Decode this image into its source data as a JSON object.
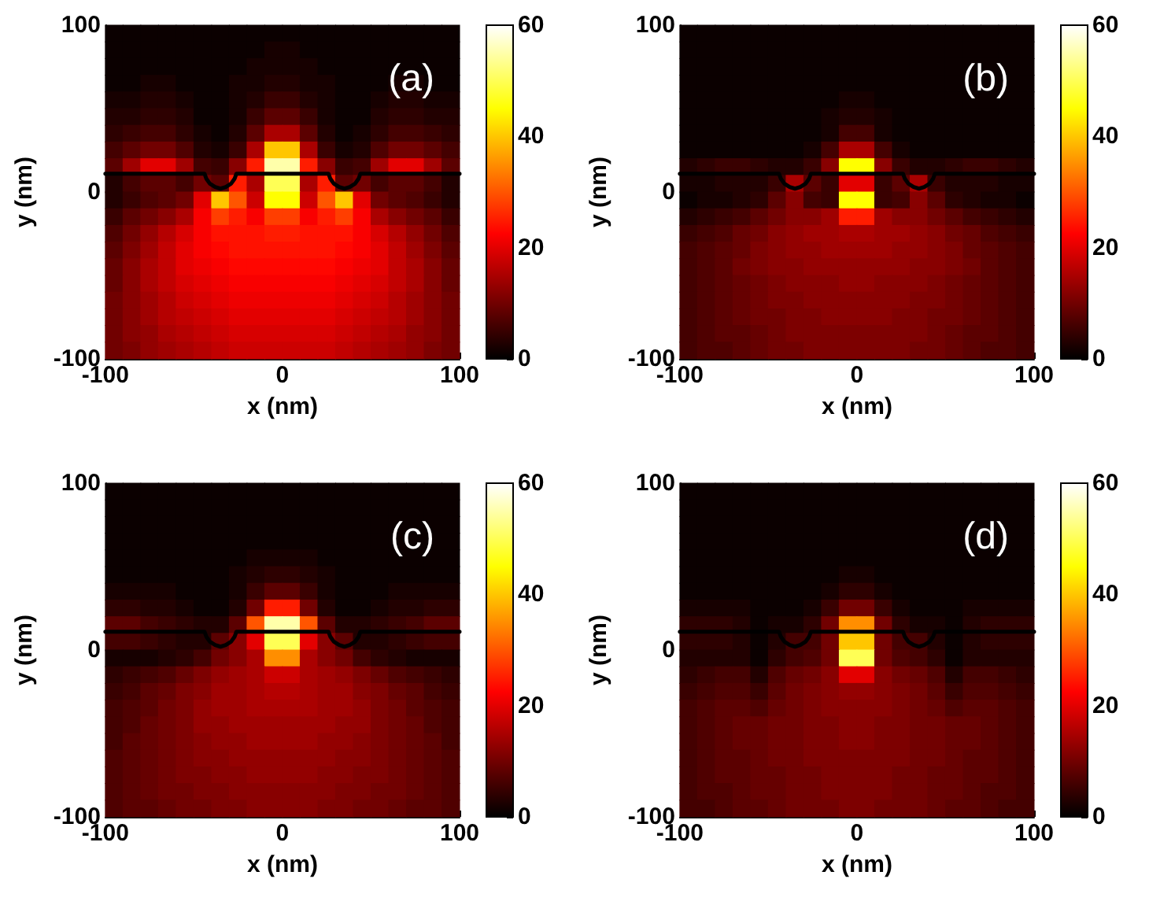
{
  "chart_data": [
    {
      "type": "heatmap",
      "xlabel": "x (nm)",
      "ylabel": "y (nm)",
      "annotations": [
        "(a)"
      ],
      "xlim": [
        -100,
        100
      ],
      "xticks": [
        -100,
        0,
        100
      ],
      "ylim": [
        -100,
        100
      ],
      "yticks": [
        -100,
        0,
        100
      ],
      "clim": [
        0,
        60
      ],
      "cticks": [
        0,
        20,
        40,
        60
      ],
      "cells": [
        [
          1,
          1,
          1,
          1,
          1,
          1,
          1,
          1,
          1,
          1,
          1,
          1,
          1,
          1,
          1,
          1,
          1,
          1,
          1,
          1
        ],
        [
          1,
          1,
          1,
          1,
          1,
          1,
          1,
          1,
          1,
          2,
          2,
          1,
          1,
          1,
          1,
          1,
          1,
          1,
          1,
          1
        ],
        [
          1,
          1,
          1,
          1,
          1,
          1,
          1,
          1,
          2,
          2,
          2,
          2,
          1,
          1,
          1,
          1,
          1,
          1,
          1,
          1
        ],
        [
          1,
          1,
          2,
          2,
          1,
          1,
          1,
          2,
          2,
          3,
          3,
          2,
          2,
          1,
          1,
          1,
          2,
          2,
          1,
          1
        ],
        [
          2,
          2,
          3,
          3,
          2,
          1,
          1,
          2,
          3,
          5,
          5,
          3,
          2,
          1,
          1,
          2,
          3,
          3,
          2,
          2
        ],
        [
          3,
          3,
          4,
          4,
          3,
          1,
          1,
          2,
          5,
          8,
          8,
          5,
          2,
          1,
          1,
          3,
          4,
          4,
          3,
          3
        ],
        [
          4,
          5,
          6,
          6,
          4,
          2,
          1,
          3,
          8,
          15,
          15,
          8,
          3,
          1,
          2,
          4,
          6,
          6,
          5,
          4
        ],
        [
          6,
          8,
          10,
          10,
          7,
          3,
          2,
          5,
          15,
          40,
          40,
          15,
          5,
          2,
          3,
          7,
          10,
          10,
          8,
          6
        ],
        [
          8,
          14,
          20,
          20,
          14,
          6,
          5,
          12,
          25,
          55,
          55,
          25,
          12,
          5,
          6,
          14,
          20,
          20,
          14,
          8
        ],
        [
          3,
          6,
          8,
          8,
          6,
          10,
          8,
          25,
          15,
          50,
          50,
          15,
          25,
          8,
          10,
          6,
          8,
          8,
          6,
          3
        ],
        [
          3,
          5,
          7,
          8,
          10,
          20,
          40,
          30,
          18,
          45,
          45,
          18,
          30,
          40,
          20,
          10,
          8,
          7,
          5,
          3
        ],
        [
          5,
          8,
          10,
          12,
          15,
          22,
          28,
          25,
          22,
          28,
          28,
          22,
          25,
          28,
          22,
          15,
          12,
          10,
          8,
          5
        ],
        [
          7,
          10,
          13,
          16,
          19,
          22,
          24,
          24,
          24,
          25,
          25,
          24,
          24,
          24,
          22,
          19,
          16,
          13,
          10,
          7
        ],
        [
          8,
          11,
          14,
          17,
          20,
          22,
          23,
          24,
          24,
          24,
          24,
          24,
          24,
          23,
          22,
          20,
          17,
          14,
          11,
          8
        ],
        [
          9,
          12,
          15,
          17,
          20,
          21,
          22,
          23,
          23,
          23,
          23,
          23,
          23,
          22,
          21,
          20,
          17,
          15,
          12,
          9
        ],
        [
          9,
          12,
          15,
          17,
          19,
          20,
          21,
          22,
          22,
          22,
          22,
          22,
          22,
          21,
          20,
          19,
          17,
          15,
          12,
          9
        ],
        [
          10,
          12,
          14,
          16,
          18,
          19,
          20,
          21,
          21,
          21,
          21,
          21,
          21,
          20,
          19,
          18,
          16,
          14,
          12,
          10
        ],
        [
          10,
          12,
          14,
          16,
          17,
          18,
          19,
          20,
          20,
          20,
          20,
          20,
          20,
          19,
          18,
          17,
          16,
          14,
          12,
          10
        ],
        [
          10,
          12,
          13,
          15,
          16,
          17,
          18,
          19,
          19,
          19,
          19,
          19,
          19,
          18,
          17,
          16,
          15,
          13,
          12,
          10
        ],
        [
          10,
          11,
          13,
          14,
          15,
          16,
          17,
          18,
          18,
          18,
          18,
          18,
          18,
          17,
          16,
          15,
          14,
          13,
          11,
          10
        ]
      ],
      "series": [
        {
          "type": "line",
          "color": "#000000",
          "x": [
            -100,
            -44,
            -43,
            -41,
            -38,
            -35,
            -32,
            -29,
            -27,
            -26,
            26,
            27,
            29,
            32,
            35,
            38,
            41,
            43,
            44,
            100
          ],
          "values": [
            11,
            11,
            8,
            5,
            3,
            2,
            3,
            5,
            8,
            11,
            11,
            8,
            5,
            3,
            2,
            3,
            5,
            8,
            11,
            11
          ]
        }
      ]
    },
    {
      "type": "heatmap",
      "xlabel": "x (nm)",
      "ylabel": "y (nm)",
      "annotations": [
        "(b)"
      ],
      "xlim": [
        -100,
        100
      ],
      "xticks": [
        -100,
        0,
        100
      ],
      "ylim": [
        -100,
        100
      ],
      "yticks": [
        -100,
        0,
        100
      ],
      "clim": [
        0,
        60
      ],
      "cticks": [
        0,
        20,
        40,
        60
      ],
      "cells": [
        [
          1,
          1,
          1,
          1,
          1,
          1,
          1,
          1,
          1,
          1,
          1,
          1,
          1,
          1,
          1,
          1,
          1,
          1,
          1,
          1
        ],
        [
          1,
          1,
          1,
          1,
          1,
          1,
          1,
          1,
          1,
          1,
          1,
          1,
          1,
          1,
          1,
          1,
          1,
          1,
          1,
          1
        ],
        [
          1,
          1,
          1,
          1,
          1,
          1,
          1,
          1,
          1,
          1,
          1,
          1,
          1,
          1,
          1,
          1,
          1,
          1,
          1,
          1
        ],
        [
          1,
          1,
          1,
          1,
          1,
          1,
          1,
          1,
          1,
          1,
          1,
          1,
          1,
          1,
          1,
          1,
          1,
          1,
          1,
          1
        ],
        [
          1,
          1,
          1,
          1,
          1,
          1,
          1,
          1,
          1,
          2,
          2,
          1,
          1,
          1,
          1,
          1,
          1,
          1,
          1,
          1
        ],
        [
          1,
          1,
          1,
          1,
          1,
          1,
          1,
          1,
          2,
          3,
          3,
          2,
          1,
          1,
          1,
          1,
          1,
          1,
          1,
          1
        ],
        [
          1,
          1,
          1,
          1,
          1,
          1,
          1,
          1,
          2,
          6,
          6,
          2,
          1,
          1,
          1,
          1,
          1,
          1,
          1,
          1
        ],
        [
          1,
          1,
          1,
          1,
          1,
          1,
          1,
          2,
          6,
          15,
          15,
          6,
          2,
          1,
          1,
          1,
          1,
          1,
          1,
          1
        ],
        [
          3,
          4,
          5,
          5,
          4,
          3,
          3,
          5,
          12,
          45,
          45,
          12,
          5,
          3,
          3,
          4,
          5,
          5,
          4,
          3
        ],
        [
          2,
          2,
          3,
          3,
          3,
          5,
          15,
          8,
          5,
          20,
          20,
          5,
          8,
          15,
          5,
          3,
          3,
          3,
          2,
          2
        ],
        [
          1,
          2,
          2,
          3,
          4,
          8,
          12,
          6,
          5,
          45,
          45,
          5,
          6,
          12,
          8,
          4,
          3,
          2,
          2,
          1
        ],
        [
          3,
          4,
          5,
          6,
          8,
          10,
          12,
          12,
          14,
          25,
          25,
          14,
          12,
          12,
          10,
          8,
          6,
          5,
          4,
          3
        ],
        [
          5,
          6,
          7,
          9,
          10,
          12,
          13,
          14,
          14,
          15,
          15,
          14,
          14,
          13,
          12,
          10,
          9,
          7,
          6,
          5
        ],
        [
          6,
          7,
          8,
          9,
          11,
          12,
          13,
          13,
          14,
          14,
          14,
          14,
          13,
          13,
          12,
          11,
          9,
          8,
          7,
          6
        ],
        [
          6,
          7,
          8,
          10,
          11,
          12,
          12,
          13,
          13,
          13,
          13,
          13,
          13,
          12,
          12,
          11,
          10,
          8,
          7,
          6
        ],
        [
          6,
          7,
          8,
          9,
          10,
          11,
          12,
          12,
          12,
          13,
          13,
          12,
          12,
          12,
          11,
          10,
          9,
          8,
          7,
          6
        ],
        [
          6,
          7,
          8,
          9,
          10,
          11,
          11,
          12,
          12,
          12,
          12,
          12,
          12,
          11,
          11,
          10,
          9,
          8,
          7,
          6
        ],
        [
          6,
          7,
          8,
          9,
          10,
          10,
          11,
          11,
          12,
          12,
          12,
          12,
          11,
          11,
          10,
          10,
          9,
          8,
          7,
          6
        ],
        [
          6,
          7,
          8,
          8,
          9,
          10,
          11,
          11,
          11,
          11,
          11,
          11,
          11,
          11,
          10,
          9,
          8,
          8,
          7,
          6
        ],
        [
          6,
          7,
          7,
          8,
          9,
          10,
          10,
          11,
          11,
          11,
          11,
          11,
          11,
          10,
          10,
          9,
          8,
          7,
          7,
          6
        ]
      ],
      "series": [
        {
          "type": "line",
          "color": "#000000",
          "x": [
            -100,
            -44,
            -43,
            -41,
            -38,
            -35,
            -32,
            -29,
            -27,
            -26,
            26,
            27,
            29,
            32,
            35,
            38,
            41,
            43,
            44,
            100
          ],
          "values": [
            11,
            11,
            8,
            5,
            3,
            2,
            3,
            5,
            8,
            11,
            11,
            8,
            5,
            3,
            2,
            3,
            5,
            8,
            11,
            11
          ]
        }
      ]
    },
    {
      "type": "heatmap",
      "xlabel": "x (nm)",
      "ylabel": "y (nm)",
      "annotations": [
        "(c)"
      ],
      "xlim": [
        -100,
        100
      ],
      "xticks": [
        -100,
        0,
        100
      ],
      "ylim": [
        -100,
        100
      ],
      "yticks": [
        -100,
        0,
        100
      ],
      "clim": [
        0,
        60
      ],
      "cticks": [
        0,
        20,
        40,
        60
      ],
      "cells": [
        [
          1,
          1,
          1,
          1,
          1,
          1,
          1,
          1,
          1,
          1,
          1,
          1,
          1,
          1,
          1,
          1,
          1,
          1,
          1,
          1
        ],
        [
          1,
          1,
          1,
          1,
          1,
          1,
          1,
          1,
          1,
          1,
          1,
          1,
          1,
          1,
          1,
          1,
          1,
          1,
          1,
          1
        ],
        [
          1,
          1,
          1,
          1,
          1,
          1,
          1,
          1,
          1,
          1,
          1,
          1,
          1,
          1,
          1,
          1,
          1,
          1,
          1,
          1
        ],
        [
          1,
          1,
          1,
          1,
          1,
          1,
          1,
          1,
          1,
          1,
          1,
          1,
          1,
          1,
          1,
          1,
          1,
          1,
          1,
          1
        ],
        [
          1,
          1,
          1,
          1,
          1,
          1,
          1,
          1,
          2,
          2,
          2,
          2,
          1,
          1,
          1,
          1,
          1,
          1,
          1,
          1
        ],
        [
          1,
          1,
          1,
          1,
          1,
          1,
          1,
          2,
          3,
          4,
          4,
          3,
          2,
          1,
          1,
          1,
          1,
          1,
          1,
          1
        ],
        [
          2,
          2,
          2,
          2,
          1,
          1,
          1,
          2,
          5,
          8,
          8,
          5,
          2,
          1,
          1,
          1,
          2,
          2,
          2,
          2
        ],
        [
          4,
          4,
          3,
          3,
          2,
          1,
          1,
          3,
          10,
          25,
          25,
          10,
          3,
          1,
          1,
          2,
          3,
          3,
          4,
          4
        ],
        [
          8,
          8,
          6,
          5,
          4,
          3,
          3,
          8,
          30,
          55,
          55,
          30,
          8,
          3,
          3,
          4,
          5,
          6,
          8,
          8
        ],
        [
          6,
          6,
          5,
          4,
          3,
          3,
          8,
          12,
          20,
          50,
          50,
          20,
          12,
          8,
          3,
          3,
          4,
          5,
          6,
          6
        ],
        [
          2,
          2,
          2,
          3,
          4,
          6,
          10,
          12,
          15,
          35,
          35,
          15,
          12,
          10,
          6,
          4,
          3,
          2,
          2,
          2
        ],
        [
          4,
          5,
          6,
          7,
          9,
          11,
          13,
          14,
          15,
          18,
          18,
          15,
          14,
          13,
          11,
          9,
          7,
          6,
          5,
          4
        ],
        [
          5,
          6,
          8,
          9,
          11,
          12,
          14,
          14,
          15,
          16,
          16,
          15,
          14,
          14,
          12,
          11,
          9,
          8,
          6,
          5
        ],
        [
          6,
          7,
          8,
          10,
          11,
          13,
          14,
          14,
          15,
          15,
          15,
          15,
          14,
          14,
          13,
          11,
          10,
          8,
          7,
          6
        ],
        [
          6,
          7,
          9,
          10,
          11,
          13,
          13,
          14,
          14,
          14,
          14,
          14,
          14,
          13,
          13,
          11,
          10,
          9,
          7,
          6
        ],
        [
          6,
          8,
          9,
          10,
          11,
          12,
          13,
          13,
          14,
          14,
          14,
          14,
          13,
          13,
          12,
          11,
          10,
          9,
          8,
          6
        ],
        [
          7,
          8,
          9,
          10,
          11,
          12,
          12,
          13,
          13,
          13,
          13,
          13,
          13,
          12,
          12,
          11,
          10,
          9,
          8,
          7
        ],
        [
          7,
          8,
          9,
          10,
          11,
          11,
          12,
          12,
          13,
          13,
          13,
          13,
          12,
          12,
          11,
          11,
          10,
          9,
          8,
          7
        ],
        [
          7,
          8,
          9,
          10,
          10,
          11,
          11,
          12,
          12,
          12,
          12,
          12,
          12,
          11,
          11,
          10,
          10,
          9,
          8,
          7
        ],
        [
          7,
          8,
          8,
          9,
          10,
          10,
          11,
          11,
          12,
          12,
          12,
          12,
          11,
          11,
          10,
          10,
          9,
          8,
          8,
          7
        ]
      ],
      "series": [
        {
          "type": "line",
          "color": "#000000",
          "x": [
            -100,
            -44,
            -43,
            -41,
            -38,
            -35,
            -32,
            -29,
            -27,
            -26,
            26,
            27,
            29,
            32,
            35,
            38,
            41,
            43,
            44,
            100
          ],
          "values": [
            11,
            11,
            8,
            5,
            3,
            2,
            3,
            5,
            8,
            11,
            11,
            8,
            5,
            3,
            2,
            3,
            5,
            8,
            11,
            11
          ]
        }
      ]
    },
    {
      "type": "heatmap",
      "xlabel": "x (nm)",
      "ylabel": "y (nm)",
      "annotations": [
        "(d)"
      ],
      "xlim": [
        -100,
        100
      ],
      "xticks": [
        -100,
        0,
        100
      ],
      "ylim": [
        -100,
        100
      ],
      "yticks": [
        -100,
        0,
        100
      ],
      "clim": [
        0,
        60
      ],
      "cticks": [
        0,
        20,
        40,
        60
      ],
      "cells": [
        [
          1,
          1,
          1,
          1,
          1,
          1,
          1,
          1,
          1,
          1,
          1,
          1,
          1,
          1,
          1,
          1,
          1,
          1,
          1,
          1
        ],
        [
          1,
          1,
          1,
          1,
          1,
          1,
          1,
          1,
          1,
          1,
          1,
          1,
          1,
          1,
          1,
          1,
          1,
          1,
          1,
          1
        ],
        [
          1,
          1,
          1,
          1,
          1,
          1,
          1,
          1,
          1,
          1,
          1,
          1,
          1,
          1,
          1,
          1,
          1,
          1,
          1,
          1
        ],
        [
          1,
          1,
          1,
          1,
          1,
          1,
          1,
          1,
          1,
          1,
          1,
          1,
          1,
          1,
          1,
          1,
          1,
          1,
          1,
          1
        ],
        [
          1,
          1,
          1,
          1,
          1,
          1,
          1,
          1,
          1,
          1,
          1,
          1,
          1,
          1,
          1,
          1,
          1,
          1,
          1,
          1
        ],
        [
          1,
          1,
          1,
          1,
          1,
          1,
          1,
          1,
          1,
          2,
          2,
          1,
          1,
          1,
          1,
          1,
          1,
          1,
          1,
          1
        ],
        [
          1,
          1,
          1,
          1,
          1,
          1,
          1,
          1,
          2,
          4,
          4,
          2,
          1,
          1,
          1,
          1,
          1,
          1,
          1,
          1
        ],
        [
          2,
          2,
          2,
          2,
          1,
          1,
          1,
          2,
          5,
          10,
          10,
          5,
          2,
          1,
          1,
          1,
          2,
          2,
          2,
          2
        ],
        [
          4,
          4,
          4,
          3,
          1,
          2,
          2,
          4,
          10,
          35,
          35,
          10,
          4,
          2,
          2,
          1,
          3,
          4,
          4,
          4
        ],
        [
          4,
          4,
          4,
          3,
          1,
          3,
          6,
          6,
          10,
          40,
          40,
          10,
          6,
          6,
          3,
          1,
          3,
          4,
          4,
          4
        ],
        [
          3,
          3,
          3,
          3,
          1,
          4,
          6,
          7,
          10,
          50,
          50,
          10,
          7,
          6,
          4,
          1,
          3,
          3,
          3,
          3
        ],
        [
          4,
          5,
          6,
          6,
          3,
          7,
          9,
          10,
          12,
          20,
          20,
          12,
          10,
          9,
          7,
          3,
          6,
          6,
          5,
          4
        ],
        [
          5,
          6,
          7,
          7,
          5,
          8,
          10,
          11,
          12,
          13,
          13,
          12,
          11,
          10,
          8,
          5,
          7,
          7,
          6,
          5
        ],
        [
          6,
          7,
          8,
          8,
          7,
          9,
          10,
          11,
          12,
          12,
          12,
          12,
          11,
          10,
          9,
          7,
          8,
          8,
          7,
          6
        ],
        [
          6,
          7,
          8,
          9,
          9,
          10,
          10,
          11,
          11,
          12,
          12,
          11,
          11,
          10,
          10,
          9,
          9,
          8,
          7,
          6
        ],
        [
          6,
          7,
          8,
          9,
          9,
          10,
          10,
          11,
          11,
          12,
          12,
          11,
          11,
          10,
          10,
          9,
          9,
          8,
          7,
          6
        ],
        [
          6,
          7,
          8,
          8,
          9,
          10,
          10,
          11,
          11,
          11,
          11,
          11,
          11,
          10,
          10,
          9,
          8,
          8,
          7,
          6
        ],
        [
          6,
          7,
          8,
          8,
          9,
          9,
          10,
          10,
          11,
          11,
          11,
          11,
          10,
          10,
          9,
          9,
          8,
          8,
          7,
          6
        ],
        [
          6,
          7,
          7,
          8,
          9,
          9,
          10,
          10,
          11,
          11,
          11,
          11,
          10,
          10,
          9,
          9,
          8,
          7,
          7,
          6
        ],
        [
          6,
          6,
          7,
          8,
          8,
          9,
          10,
          10,
          10,
          11,
          11,
          10,
          10,
          10,
          9,
          8,
          8,
          7,
          6,
          6
        ]
      ],
      "series": [
        {
          "type": "line",
          "color": "#000000",
          "x": [
            -100,
            -44,
            -43,
            -41,
            -38,
            -35,
            -32,
            -29,
            -27,
            -26,
            26,
            27,
            29,
            32,
            35,
            38,
            41,
            43,
            44,
            100
          ],
          "values": [
            11,
            11,
            8,
            5,
            3,
            2,
            3,
            5,
            8,
            11,
            11,
            8,
            5,
            3,
            2,
            3,
            5,
            8,
            11,
            11
          ]
        }
      ]
    }
  ]
}
